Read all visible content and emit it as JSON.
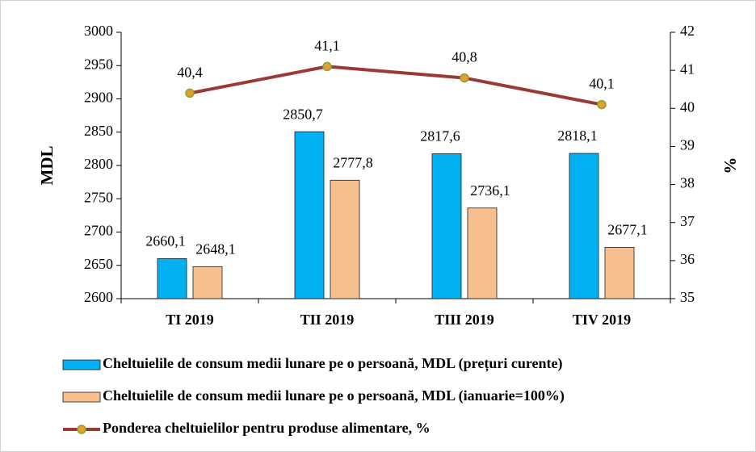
{
  "chart_data": {
    "type": "bar",
    "categories": [
      "TI 2019",
      "TII 2019",
      "TIII 2019",
      "TIV 2019"
    ],
    "series": [
      {
        "name": "Cheltuielile de consum medii lunare pe o persoană, MDL (prețuri curente)",
        "color": "#00b0f0",
        "values": [
          2660.1,
          2850.7,
          2817.6,
          2818.1
        ],
        "value_labels": [
          "2660,1",
          "2850,7",
          "2817,6",
          "2818,1"
        ]
      },
      {
        "name": "Cheltuielile de consum medii lunare pe o persoană, MDL (ianuarie=100%)",
        "color": "#f8bf8e",
        "values": [
          2648.1,
          2777.8,
          2736.1,
          2677.1
        ],
        "value_labels": [
          "2648,1",
          "2777,8",
          "2736,1",
          "2677,1"
        ]
      },
      {
        "name": "Ponderea cheltuielilor pentru produse alimentare, %",
        "type": "line",
        "axis": "y2",
        "color": "#9b3a33",
        "values": [
          40.4,
          41.1,
          40.8,
          40.1
        ],
        "value_labels": [
          "40,4",
          "41,1",
          "40,8",
          "40,1"
        ]
      }
    ],
    "ylabel": "MDL",
    "y2label": "%",
    "ylim": [
      2600,
      3000
    ],
    "yticks": [
      2600,
      2650,
      2700,
      2750,
      2800,
      2850,
      2900,
      2950,
      3000
    ],
    "y2lim": [
      35,
      42
    ],
    "y2ticks": [
      35,
      36,
      37,
      38,
      39,
      40,
      41,
      42
    ],
    "grid": false
  }
}
